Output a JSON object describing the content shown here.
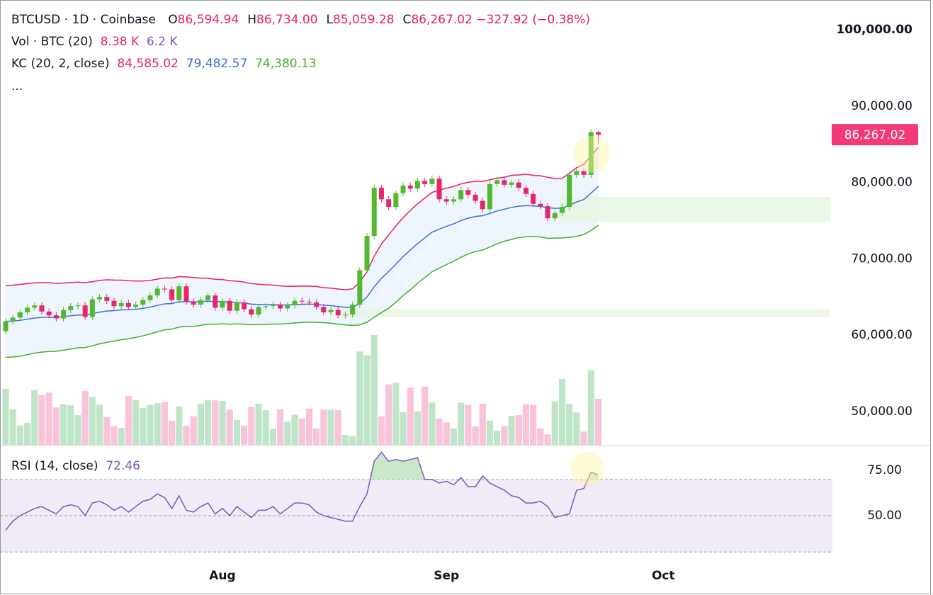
{
  "chart_data": [
    {
      "type": "candlestick",
      "symbol": "BTCUSD · 1D · Coinbase",
      "ohlc_labels": [
        {
          "key": "O",
          "label": "86,594.94"
        },
        {
          "key": "H",
          "label": "86,734.00"
        },
        {
          "key": "L",
          "label": "85,059.28"
        },
        {
          "key": "C",
          "label": "86,267.02"
        }
      ],
      "change_label": "−327.92 (−0.38%)",
      "more": "...",
      "open": [
        60500,
        61800,
        62300,
        63000,
        63600,
        63900,
        63100,
        62600,
        62200,
        63300,
        63800,
        63900,
        62400,
        64700,
        65000,
        64500,
        63800,
        64200,
        63700,
        64000,
        64600,
        65200,
        66100,
        66000,
        64600,
        66400,
        64400,
        64000,
        64600,
        65200,
        63600,
        64500,
        63200,
        64300,
        63400,
        62700,
        63700,
        63800,
        64000,
        63500,
        63900,
        64500,
        64400,
        64300,
        63700,
        63000,
        63300,
        62600,
        62700,
        64000,
        68500,
        73000,
        79300,
        77800,
        76800,
        78600,
        79600,
        79200,
        80200,
        79800,
        80500,
        77800,
        77500,
        77800,
        79000,
        78400,
        77600,
        76500,
        79800,
        80300,
        79700,
        80000,
        79300,
        78500,
        77200,
        76900,
        75300,
        76000,
        76800,
        81000,
        81500,
        81000,
        86594.94
      ],
      "high": [
        62200,
        62700,
        63400,
        64000,
        64300,
        64300,
        63500,
        63000,
        63700,
        64200,
        64300,
        64300,
        65100,
        65400,
        65400,
        64900,
        64600,
        64600,
        64400,
        65000,
        65600,
        66500,
        66500,
        66400,
        66800,
        66800,
        64800,
        65000,
        65600,
        65600,
        64900,
        64900,
        64700,
        64700,
        63800,
        64100,
        64200,
        64400,
        64400,
        64300,
        64900,
        64900,
        64800,
        64700,
        64100,
        63700,
        63700,
        63100,
        64400,
        68900,
        73400,
        79700,
        79700,
        78200,
        79000,
        80000,
        80000,
        80600,
        80600,
        80900,
        80900,
        78200,
        78200,
        79400,
        79400,
        78800,
        78000,
        80200,
        80700,
        80700,
        80400,
        80400,
        79700,
        78900,
        77600,
        77300,
        76400,
        77200,
        81400,
        81900,
        81900,
        87000,
        86734
      ],
      "low": [
        60100,
        61400,
        61900,
        62600,
        63200,
        62700,
        62200,
        61800,
        61800,
        62900,
        63400,
        62000,
        62000,
        64300,
        64100,
        63400,
        63400,
        63300,
        63300,
        63600,
        64200,
        64800,
        65600,
        64200,
        64200,
        64000,
        63600,
        63600,
        64200,
        63200,
        63200,
        62800,
        62800,
        63000,
        62300,
        62300,
        63300,
        63400,
        63100,
        63100,
        63500,
        64000,
        63900,
        63300,
        62600,
        62600,
        62200,
        62200,
        62300,
        63600,
        68100,
        72600,
        77400,
        76400,
        76400,
        78200,
        78800,
        78800,
        79400,
        79400,
        77400,
        77100,
        77100,
        77400,
        78000,
        77200,
        76100,
        76100,
        79400,
        79300,
        79300,
        78900,
        78100,
        76800,
        76500,
        74900,
        74900,
        75600,
        76400,
        80600,
        80600,
        80600,
        85059.28
      ],
      "close": [
        61800,
        62300,
        63000,
        63600,
        63900,
        63100,
        62600,
        62200,
        63300,
        63800,
        63900,
        62400,
        64700,
        65000,
        64500,
        63800,
        64200,
        63700,
        64000,
        64600,
        65200,
        66100,
        66000,
        64600,
        66400,
        64400,
        64000,
        64600,
        65200,
        63600,
        64500,
        63200,
        64300,
        63400,
        62700,
        63700,
        63800,
        64000,
        63500,
        63900,
        64500,
        64400,
        64300,
        63700,
        63000,
        63300,
        62600,
        62700,
        64000,
        68500,
        73000,
        79300,
        77800,
        76800,
        78600,
        79600,
        79200,
        80200,
        79800,
        80500,
        77800,
        77500,
        77800,
        79000,
        78400,
        77600,
        76500,
        79800,
        80300,
        79700,
        80000,
        79300,
        78500,
        77200,
        76900,
        75300,
        76000,
        76800,
        81000,
        81500,
        81000,
        86600,
        86267.02
      ],
      "up_color": "#52b830",
      "down_color": "#e8256c",
      "last_label": "86,267.02",
      "last_color": "#f23a77",
      "channel": {
        "title": "KC (20, 2, close)",
        "fill": "#eef5fc",
        "series": [
          {
            "color": "#e91e63",
            "value_label": "84,585.02",
            "values": [
              66500,
              66550,
              66650,
              66750,
              66850,
              66880,
              66860,
              66790,
              66830,
              66890,
              66950,
              66880,
              67010,
              67170,
              67260,
              67220,
              67210,
              67140,
              67100,
              67110,
              67170,
              67350,
              67500,
              67490,
              67670,
              67640,
              67560,
              67480,
              67460,
              67330,
              67290,
              67130,
              67080,
              66950,
              66760,
              66680,
              66610,
              66560,
              66460,
              66410,
              66410,
              66450,
              66420,
              66380,
              66230,
              66170,
              66050,
              65950,
              66080,
              66940,
              68290,
              70350,
              71950,
              73130,
              74310,
              75390,
              76340,
              77210,
              77950,
              78690,
              79000,
              79250,
              79490,
              79810,
              80030,
              80150,
              80150,
              80350,
              80570,
              80700,
              80940,
              80990,
              81080,
              80940,
              80880,
              80680,
              80520,
              80540,
              81210,
              81940,
              82370,
              83510,
              84585.02
            ]
          },
          {
            "color": "#3d6fe0",
            "value_label": "79,482.57",
            "values": [
              61800,
              61850,
              61950,
              62100,
              62250,
              62330,
              62360,
              62340,
              62430,
              62540,
              62650,
              62630,
              62810,
              63020,
              63160,
              63220,
              63310,
              63340,
              63400,
              63510,
              63670,
              63900,
              64100,
              64140,
              64370,
              64390,
              64360,
              64380,
              64460,
              64380,
              64390,
              64280,
              64280,
              64200,
              64060,
              64030,
              64010,
              64010,
              63960,
              63960,
              64010,
              64050,
              64070,
              64030,
              63930,
              63870,
              63750,
              63650,
              63680,
              64140,
              64990,
              66350,
              67450,
              68330,
              69310,
              70290,
              71140,
              72010,
              72750,
              73490,
              73900,
              74250,
              74590,
              75010,
              75330,
              75550,
              75650,
              75950,
              76270,
              76500,
              76740,
              76890,
              76980,
              76940,
              76880,
              76680,
              76620,
              76640,
              77010,
              77440,
              77770,
              78610,
              79482.57
            ]
          },
          {
            "color": "#43b02a",
            "value_label": "74,380.13",
            "values": [
              57100,
              57150,
              57250,
              57450,
              57650,
              57780,
              57860,
              57890,
              58030,
              58190,
              58350,
              58380,
              58610,
              58870,
              59060,
              59220,
              59410,
              59540,
              59700,
              59910,
              60170,
              60450,
              60700,
              60790,
              61070,
              61140,
              61160,
              61280,
              61460,
              61430,
              61490,
              61430,
              61480,
              61450,
              61360,
              61380,
              61410,
              61460,
              61460,
              61510,
              61610,
              61650,
              61720,
              61680,
              61630,
              61570,
              61450,
              61350,
              61280,
              61340,
              61690,
              62350,
              62950,
              63530,
              64310,
              65190,
              65940,
              66810,
              67550,
              68290,
              68800,
              69250,
              69690,
              70210,
              70630,
              70950,
              71150,
              71550,
              71970,
              72300,
              72540,
              72790,
              72880,
              72940,
              72880,
              72680,
              72720,
              72740,
              72810,
              72940,
              73170,
              73710,
              74380.13
            ]
          }
        ]
      },
      "ylim": [
        45640,
        103900
      ],
      "yticks": [
        {
          "value": 100000,
          "label": "100,000.00"
        },
        {
          "value": 90000,
          "label": "90,000.00"
        },
        {
          "value": 80000,
          "label": "80,000.00"
        },
        {
          "value": 70000,
          "label": "70,000.00"
        },
        {
          "value": 60000,
          "label": "60,000.00"
        },
        {
          "value": 50000,
          "label": "50,000.00"
        }
      ],
      "xlim": [
        -0.78,
        114.4
      ],
      "xticks": [
        {
          "value": 30,
          "label": "Aug"
        },
        {
          "value": 61,
          "label": "Sep"
        },
        {
          "value": 91,
          "label": "Oct"
        }
      ]
    },
    {
      "type": "bar",
      "title": "Vol · BTC (20)",
      "last_label": "8.38 K",
      "ma_label": "6.2 K",
      "values": [
        10.2,
        6.5,
        3.5,
        4.0,
        10.0,
        9.1,
        9.5,
        6.8,
        7.4,
        7.2,
        5.4,
        9.8,
        8.7,
        7.3,
        5.1,
        3.4,
        3.1,
        8.9,
        8.2,
        6.7,
        7.3,
        7.6,
        7.8,
        4.4,
        7.0,
        3.5,
        5.2,
        7.5,
        8.2,
        8.1,
        8.0,
        6.4,
        4.5,
        3.5,
        6.9,
        7.5,
        6.3,
        2.9,
        6.5,
        4.2,
        5.5,
        4.8,
        6.6,
        3.0,
        6.4,
        6.4,
        6.3,
        1.8,
        1.6,
        17.0,
        16.3,
        20.0,
        5.2,
        11.0,
        11.3,
        6.0,
        10.4,
        6.1,
        10.6,
        7.7,
        4.8,
        4.1,
        3.0,
        7.7,
        7.3,
        3.4,
        7.5,
        4.4,
        2.6,
        3.4,
        5.3,
        5.4,
        7.4,
        7.3,
        3.0,
        1.9,
        7.9,
        12.0,
        7.5,
        5.9,
        2.4,
        13.6,
        8.38
      ],
      "up_color": "#bfe5c8",
      "down_color": "#f9c3da",
      "ylim": [
        0,
        81
      ]
    },
    {
      "type": "line",
      "title": "RSI (14, close)",
      "last_label": "72.46",
      "color": "#7e57c2",
      "values": [
        42,
        47,
        50,
        52,
        54,
        55,
        53,
        51,
        55,
        56,
        55,
        50,
        57,
        58,
        56,
        53,
        55,
        52,
        55,
        58,
        59,
        62,
        60,
        54,
        61,
        53,
        52,
        55,
        57,
        51,
        54,
        50,
        55,
        52,
        49,
        53,
        53,
        55,
        51,
        54,
        57,
        57,
        56,
        52,
        50,
        49,
        48,
        47,
        47,
        55,
        62,
        80,
        85,
        80,
        81,
        80,
        81,
        82,
        70,
        70,
        68,
        69,
        67,
        71,
        66,
        66,
        72,
        68,
        66,
        64,
        61,
        60,
        57,
        57,
        58,
        55,
        49,
        50,
        51,
        64,
        65,
        74,
        72.46
      ],
      "ylim": [
        25.8,
        88.3
      ],
      "yticks": [
        {
          "value": 75,
          "label": "75.00"
        },
        {
          "value": 50,
          "label": "50.00"
        }
      ],
      "bands": [
        70,
        50,
        30
      ],
      "band_fill": "#f1ecf8",
      "over_fill": "#c8e8c9"
    }
  ]
}
